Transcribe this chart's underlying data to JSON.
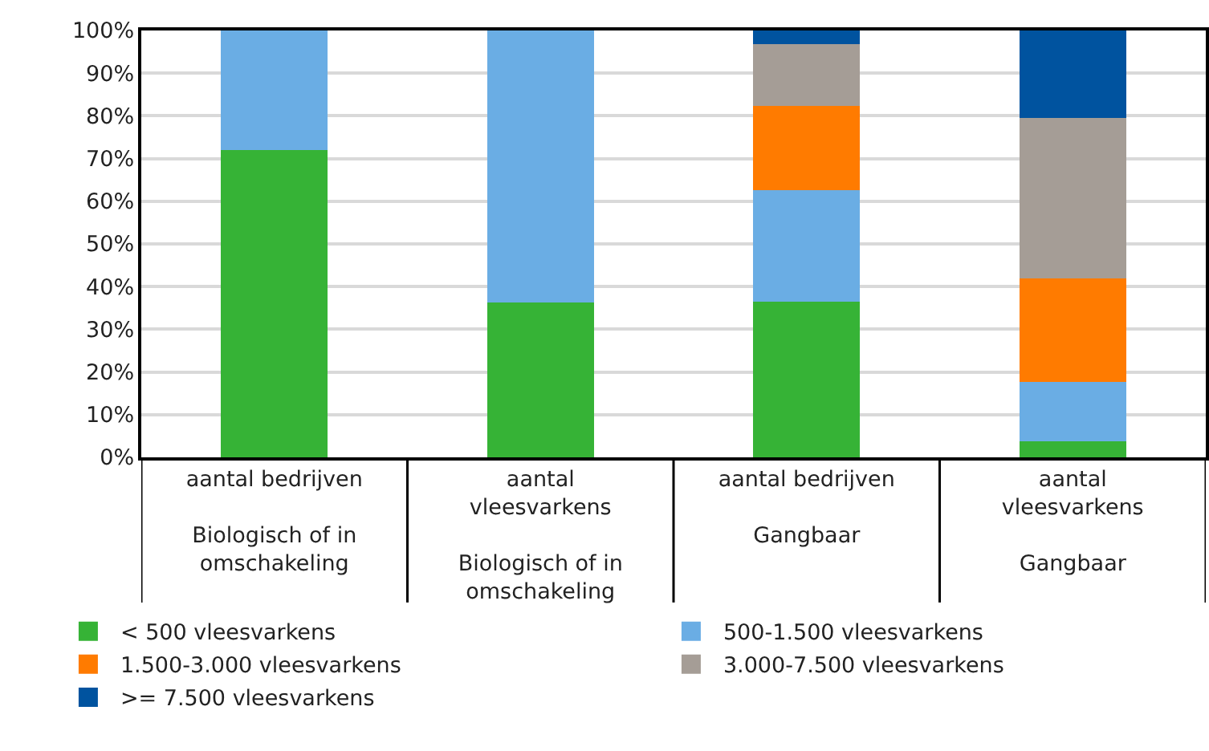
{
  "chart_data": {
    "type": "bar",
    "stacked": true,
    "categories": [
      "aantal bedrijven\n\nBiologisch of in\nomschakeling",
      "aantal\nvleesvarkens\n\nBiologisch of in\nomschakeling",
      "aantal bedrijven\n\nGangbaar",
      "aantal\nvleesvarkens\n\nGangbaar"
    ],
    "series": [
      {
        "name": "< 500 vleesvarkens",
        "color": "#36b336",
        "values": [
          72,
          36.2,
          36.5,
          3.8
        ]
      },
      {
        "name": "500-1.500 vleesvarkens",
        "color": "#6aade4",
        "values": [
          28,
          63.8,
          26.1,
          13.9
        ]
      },
      {
        "name": "1.500-3.000 vleesvarkens",
        "color": "#ff7b00",
        "values": [
          0,
          0,
          19.7,
          24.2
        ]
      },
      {
        "name": "3.000-7.500 vleesvarkens",
        "color": "#a59d96",
        "values": [
          0,
          0,
          14.5,
          37.6
        ]
      },
      {
        "name": ">= 7.500 vleesvarkens",
        "color": "#00539f",
        "values": [
          0,
          0,
          3.2,
          20.5
        ]
      }
    ],
    "ylim": [
      0,
      100
    ],
    "yticks": [
      {
        "value": 0,
        "label": "0%"
      },
      {
        "value": 10,
        "label": "10%"
      },
      {
        "value": 20,
        "label": "20%"
      },
      {
        "value": 30,
        "label": "30%"
      },
      {
        "value": 40,
        "label": "40%"
      },
      {
        "value": 50,
        "label": "50%"
      },
      {
        "value": 60,
        "label": "60%"
      },
      {
        "value": 70,
        "label": "70%"
      },
      {
        "value": 80,
        "label": "80%"
      },
      {
        "value": 90,
        "label": "90%"
      },
      {
        "value": 100,
        "label": "100%"
      }
    ],
    "grid": "y",
    "legend": "bottom"
  }
}
